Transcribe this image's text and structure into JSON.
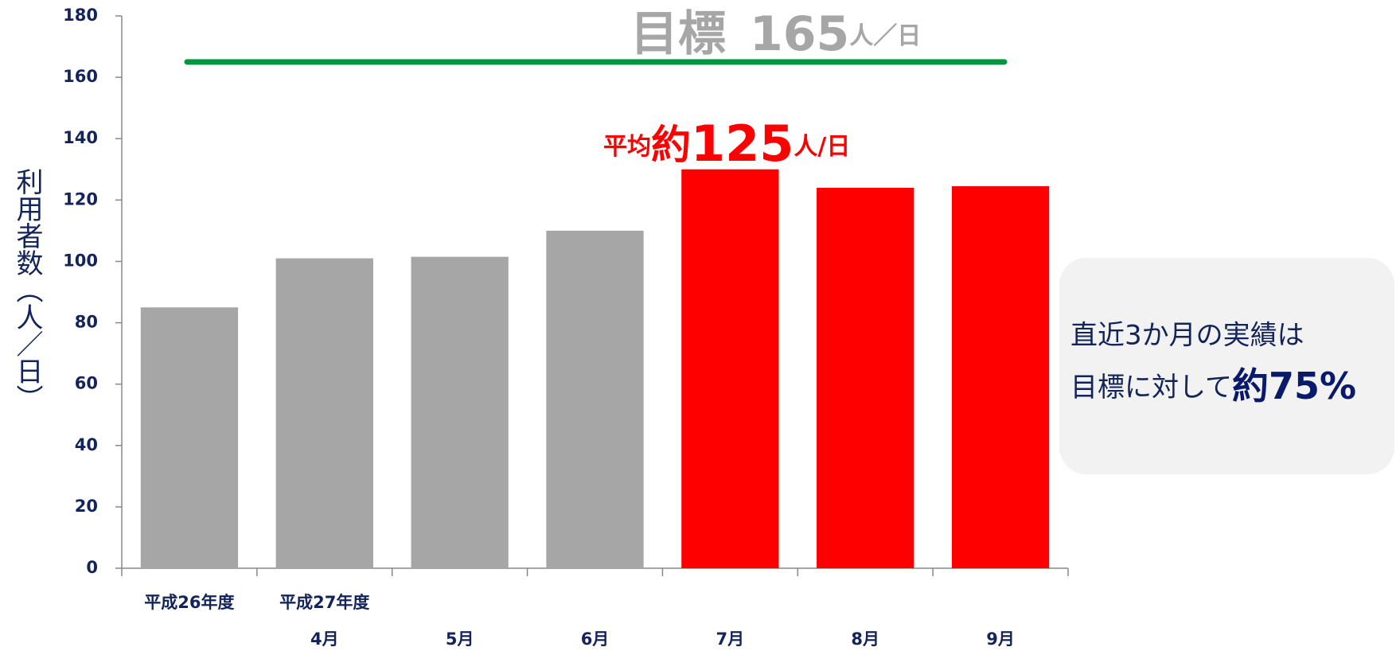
{
  "chart_data": {
    "type": "bar",
    "y_axis_label": "利用者数（人／日）",
    "group_label": "平成27年度",
    "categories": [
      "平成26年度",
      "4月",
      "5月",
      "6月",
      "7月",
      "8月",
      "9月"
    ],
    "values": [
      85,
      101,
      101.5,
      110,
      130,
      124,
      124.5
    ],
    "colors": [
      "#a6a6a6",
      "#a6a6a6",
      "#a6a6a6",
      "#a6a6a6",
      "#ff0000",
      "#ff0000",
      "#ff0000"
    ],
    "ylim": [
      0,
      180
    ],
    "yticks": [
      0,
      20,
      40,
      60,
      80,
      100,
      120,
      140,
      160,
      180
    ],
    "target": {
      "label": "目標",
      "value": 165,
      "unit": "人／日",
      "color": "#00963f"
    },
    "average": {
      "prefix": "平均",
      "approx": "約",
      "value": 125,
      "unit": "人/日",
      "color": "#ff0000"
    },
    "note": {
      "line1": "直近3か月の実績は",
      "line2": "目標に対して",
      "emphasis": "約75%"
    }
  }
}
